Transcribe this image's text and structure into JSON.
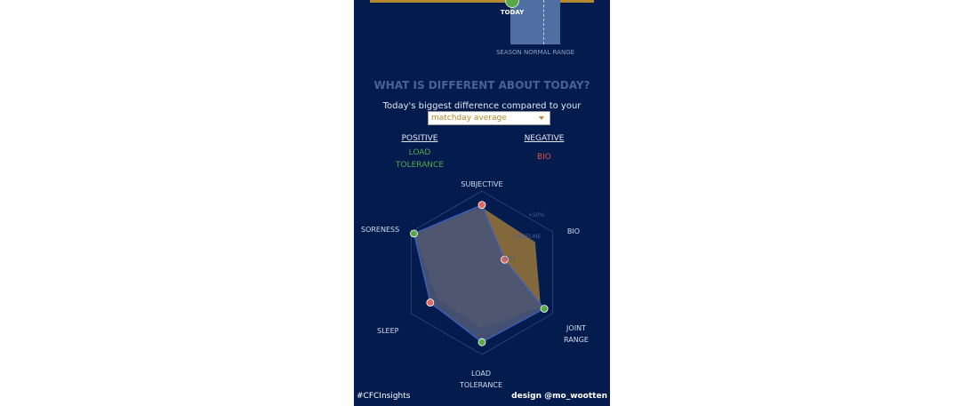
{
  "top": {
    "today_label": "TODAY",
    "season_label": "SEASON NORMAL RANGE"
  },
  "section": {
    "title": "WHAT IS DIFFERENT ABOUT TODAY?",
    "subtitle": "Today's biggest difference compared to your",
    "dropdown_value": "matchday average"
  },
  "positive": {
    "heading": "POSITIVE",
    "value": "LOAD TOLERANCE"
  },
  "negative": {
    "heading": "NEGATIVE",
    "value": "BIO"
  },
  "radar": {
    "axes": [
      {
        "key": "subjective",
        "label": "SUBJECTIVE"
      },
      {
        "key": "bio",
        "label": "BIO"
      },
      {
        "key": "joint",
        "label": "JOINT RANGE"
      },
      {
        "key": "load",
        "label": "LOAD TOLERANCE"
      },
      {
        "key": "sleep",
        "label": "SLEEP"
      },
      {
        "key": "soreness",
        "label": "SORENESS"
      }
    ],
    "ring_labels": {
      "plus": "+50%",
      "baseline": "BASELINE",
      "minus": "-50%"
    },
    "today_values": [
      0.83,
      0.32,
      0.88,
      0.85,
      0.73,
      0.96
    ],
    "average_values": [
      0.8,
      0.75,
      0.83,
      0.68,
      0.63,
      0.96
    ],
    "point_status": [
      "negative",
      "negative",
      "positive",
      "positive",
      "negative",
      "positive"
    ],
    "colors": {
      "positive": "#5aa84a",
      "negative": "#e06a62",
      "average_fill": "#8a6d3b",
      "today_fill": "#4a5575",
      "today_outline": "#3b63c9",
      "grid": "#2a4172"
    }
  },
  "footer": {
    "left": "#CFCInsights",
    "right": "design @mo_wootten"
  }
}
